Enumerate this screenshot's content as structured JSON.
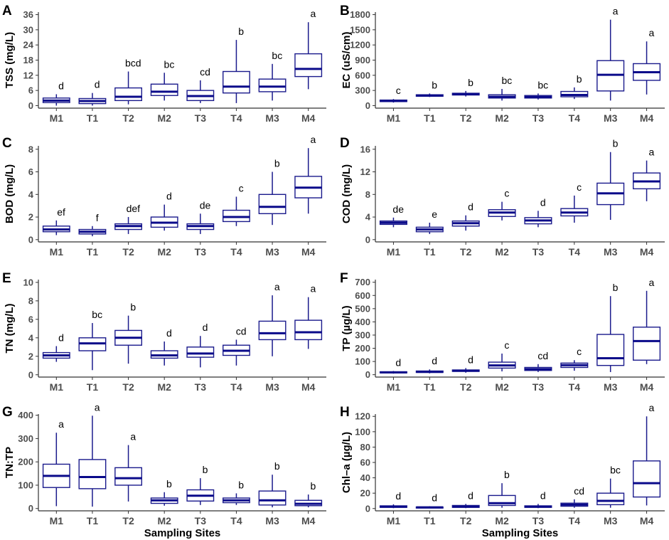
{
  "chart_data": [
    {
      "type": "boxplot",
      "panel": "A",
      "ylabel": "TSS (mg/L)",
      "xlabel": "",
      "categories": [
        "M1",
        "T1",
        "T2",
        "M2",
        "T3",
        "T4",
        "M3",
        "M4"
      ],
      "ylim": [
        -1,
        37
      ],
      "yticks": [
        0,
        6,
        12,
        18,
        24,
        30,
        36
      ],
      "boxes": [
        {
          "min": 0,
          "q1": 1.2,
          "median": 2.0,
          "q3": 3.0,
          "max": 4.5,
          "label": "d"
        },
        {
          "min": 0,
          "q1": 0.8,
          "median": 1.8,
          "q3": 2.8,
          "max": 5.0,
          "label": "d"
        },
        {
          "min": 0.5,
          "q1": 2.0,
          "median": 3.5,
          "q3": 7.0,
          "max": 13.5,
          "label": "bcd"
        },
        {
          "min": 2.0,
          "q1": 4.0,
          "median": 5.5,
          "q3": 8.5,
          "max": 13.0,
          "label": "bc"
        },
        {
          "min": 1.0,
          "q1": 2.0,
          "median": 3.8,
          "q3": 6.0,
          "max": 10.0,
          "label": "cd"
        },
        {
          "min": 1.0,
          "q1": 5.0,
          "median": 7.5,
          "q3": 13.5,
          "max": 26.0,
          "label": "b"
        },
        {
          "min": 2.0,
          "q1": 5.5,
          "median": 7.5,
          "q3": 10.5,
          "max": 16.5,
          "label": "bc"
        },
        {
          "min": 6.5,
          "q1": 11.5,
          "median": 14.5,
          "q3": 20.5,
          "max": 33.0,
          "label": "a"
        }
      ]
    },
    {
      "type": "boxplot",
      "panel": "B",
      "ylabel": "EC (uS/cm)",
      "xlabel": "",
      "categories": [
        "M1",
        "T1",
        "T2",
        "M2",
        "T3",
        "T4",
        "M3",
        "M4"
      ],
      "ylim": [
        -50,
        1850
      ],
      "yticks": [
        0,
        300,
        600,
        900,
        1200,
        1500,
        1800
      ],
      "boxes": [
        {
          "min": 60,
          "q1": 80,
          "median": 90,
          "q3": 110,
          "max": 130,
          "label": "c"
        },
        {
          "min": 170,
          "q1": 185,
          "median": 200,
          "q3": 215,
          "max": 240,
          "label": "b"
        },
        {
          "min": 180,
          "q1": 210,
          "median": 225,
          "q3": 245,
          "max": 290,
          "label": "b"
        },
        {
          "min": 100,
          "q1": 150,
          "median": 175,
          "q3": 215,
          "max": 330,
          "label": "bc"
        },
        {
          "min": 120,
          "q1": 150,
          "median": 170,
          "q3": 200,
          "max": 240,
          "label": "bc"
        },
        {
          "min": 130,
          "q1": 175,
          "median": 210,
          "q3": 280,
          "max": 360,
          "label": "b"
        },
        {
          "min": 100,
          "q1": 290,
          "median": 610,
          "q3": 890,
          "max": 1700,
          "label": "a"
        },
        {
          "min": 220,
          "q1": 500,
          "median": 660,
          "q3": 830,
          "max": 1270,
          "label": "a"
        }
      ]
    },
    {
      "type": "boxplot",
      "panel": "C",
      "ylabel": "BOD (mg/L)",
      "xlabel": "",
      "categories": [
        "M1",
        "T1",
        "T2",
        "M2",
        "T3",
        "T4",
        "M3",
        "M4"
      ],
      "ylim": [
        -0.2,
        8.3
      ],
      "yticks": [
        0,
        2,
        4,
        6,
        8
      ],
      "boxes": [
        {
          "min": 0.4,
          "q1": 0.7,
          "median": 0.9,
          "q3": 1.2,
          "max": 1.7,
          "label": "ef"
        },
        {
          "min": 0.3,
          "q1": 0.5,
          "median": 0.7,
          "q3": 0.9,
          "max": 1.2,
          "label": "f"
        },
        {
          "min": 0.5,
          "q1": 0.9,
          "median": 1.2,
          "q3": 1.4,
          "max": 2.0,
          "label": "def"
        },
        {
          "min": 0.8,
          "q1": 1.1,
          "median": 1.5,
          "q3": 2.0,
          "max": 3.1,
          "label": "d"
        },
        {
          "min": 0.5,
          "q1": 0.9,
          "median": 1.2,
          "q3": 1.4,
          "max": 2.3,
          "label": "de"
        },
        {
          "min": 1.2,
          "q1": 1.6,
          "median": 2.0,
          "q3": 2.6,
          "max": 3.8,
          "label": "c"
        },
        {
          "min": 1.3,
          "q1": 2.3,
          "median": 2.9,
          "q3": 4.0,
          "max": 6.0,
          "label": "b"
        },
        {
          "min": 2.3,
          "q1": 3.7,
          "median": 4.6,
          "q3": 5.6,
          "max": 8.1,
          "label": "a"
        }
      ]
    },
    {
      "type": "boxplot",
      "panel": "D",
      "ylabel": "COD (mg/L)",
      "xlabel": "",
      "categories": [
        "M1",
        "T1",
        "T2",
        "M2",
        "T3",
        "T4",
        "M3",
        "M4"
      ],
      "ylim": [
        -0.4,
        16.6
      ],
      "yticks": [
        0,
        4,
        8,
        12,
        16
      ],
      "boxes": [
        {
          "min": 2.2,
          "q1": 2.7,
          "median": 3.0,
          "q3": 3.3,
          "max": 3.9,
          "label": "de"
        },
        {
          "min": 1.0,
          "q1": 1.4,
          "median": 1.8,
          "q3": 2.2,
          "max": 3.0,
          "label": "e"
        },
        {
          "min": 1.6,
          "q1": 2.4,
          "median": 2.9,
          "q3": 3.3,
          "max": 4.3,
          "label": "d"
        },
        {
          "min": 3.4,
          "q1": 4.1,
          "median": 4.8,
          "q3": 5.3,
          "max": 6.7,
          "label": "c"
        },
        {
          "min": 2.2,
          "q1": 2.8,
          "median": 3.4,
          "q3": 3.9,
          "max": 5.1,
          "label": "d"
        },
        {
          "min": 3.0,
          "q1": 4.2,
          "median": 4.8,
          "q3": 5.5,
          "max": 7.8,
          "label": "c"
        },
        {
          "min": 3.5,
          "q1": 6.2,
          "median": 8.2,
          "q3": 10.0,
          "max": 15.5,
          "label": "b"
        },
        {
          "min": 6.8,
          "q1": 9.0,
          "median": 10.3,
          "q3": 11.8,
          "max": 14.0,
          "label": "a"
        }
      ]
    },
    {
      "type": "boxplot",
      "panel": "E",
      "ylabel": "TN (mg/L)",
      "xlabel": "",
      "categories": [
        "M1",
        "T1",
        "T2",
        "M2",
        "T3",
        "T4",
        "M3",
        "M4"
      ],
      "ylim": [
        -0.25,
        10.3
      ],
      "yticks": [
        0,
        2,
        4,
        6,
        8,
        10
      ],
      "boxes": [
        {
          "min": 1.4,
          "q1": 1.8,
          "median": 2.1,
          "q3": 2.4,
          "max": 3.1,
          "label": "d"
        },
        {
          "min": 0.5,
          "q1": 2.6,
          "median": 3.4,
          "q3": 4.0,
          "max": 5.6,
          "label": "bc"
        },
        {
          "min": 1.2,
          "q1": 3.2,
          "median": 4.0,
          "q3": 4.8,
          "max": 6.4,
          "label": "b"
        },
        {
          "min": 1.0,
          "q1": 1.8,
          "median": 2.1,
          "q3": 2.6,
          "max": 3.6,
          "label": "d"
        },
        {
          "min": 0.8,
          "q1": 1.9,
          "median": 2.3,
          "q3": 3.0,
          "max": 4.2,
          "label": "d"
        },
        {
          "min": 1.0,
          "q1": 2.1,
          "median": 2.6,
          "q3": 3.2,
          "max": 3.8,
          "label": "cd"
        },
        {
          "min": 2.0,
          "q1": 3.8,
          "median": 4.5,
          "q3": 5.8,
          "max": 8.6,
          "label": "a"
        },
        {
          "min": 2.8,
          "q1": 3.8,
          "median": 4.6,
          "q3": 5.9,
          "max": 8.4,
          "label": "a"
        }
      ]
    },
    {
      "type": "boxplot",
      "panel": "F",
      "ylabel": "TP (µg/L)",
      "xlabel": "",
      "categories": [
        "M1",
        "T1",
        "T2",
        "M2",
        "T3",
        "T4",
        "M3",
        "M4"
      ],
      "ylim": [
        -18,
        720
      ],
      "yticks": [
        0,
        100,
        200,
        300,
        400,
        500,
        600,
        700
      ],
      "boxes": [
        {
          "min": 8,
          "q1": 14,
          "median": 18,
          "q3": 22,
          "max": 28,
          "label": "d"
        },
        {
          "min": 10,
          "q1": 17,
          "median": 22,
          "q3": 28,
          "max": 40,
          "label": "d"
        },
        {
          "min": 15,
          "q1": 25,
          "median": 30,
          "q3": 36,
          "max": 50,
          "label": "d"
        },
        {
          "min": 25,
          "q1": 50,
          "median": 70,
          "q3": 95,
          "max": 160,
          "label": "c"
        },
        {
          "min": 20,
          "q1": 32,
          "median": 42,
          "q3": 55,
          "max": 80,
          "label": "cd"
        },
        {
          "min": 30,
          "q1": 55,
          "median": 72,
          "q3": 88,
          "max": 110,
          "label": "c"
        },
        {
          "min": 20,
          "q1": 70,
          "median": 125,
          "q3": 305,
          "max": 595,
          "label": "b"
        },
        {
          "min": 80,
          "q1": 110,
          "median": 255,
          "q3": 360,
          "max": 635,
          "label": "a"
        }
      ]
    },
    {
      "type": "boxplot",
      "panel": "G",
      "ylabel": "TN:TP",
      "xlabel": "Sampling Sites",
      "categories": [
        "M1",
        "T1",
        "T2",
        "M2",
        "T3",
        "T4",
        "M3",
        "M4"
      ],
      "ylim": [
        -10,
        405
      ],
      "yticks": [
        0,
        100,
        200,
        300,
        400
      ],
      "boxes": [
        {
          "min": 10,
          "q1": 90,
          "median": 140,
          "q3": 190,
          "max": 325,
          "label": "a"
        },
        {
          "min": 8,
          "q1": 85,
          "median": 135,
          "q3": 210,
          "max": 398,
          "label": "a"
        },
        {
          "min": 30,
          "q1": 100,
          "median": 130,
          "q3": 175,
          "max": 272,
          "label": "a"
        },
        {
          "min": 12,
          "q1": 22,
          "median": 35,
          "q3": 45,
          "max": 70,
          "label": "b"
        },
        {
          "min": 15,
          "q1": 32,
          "median": 55,
          "q3": 80,
          "max": 130,
          "label": "b"
        },
        {
          "min": 15,
          "q1": 25,
          "median": 35,
          "q3": 45,
          "max": 65,
          "label": "b"
        },
        {
          "min": 5,
          "q1": 15,
          "median": 35,
          "q3": 75,
          "max": 145,
          "label": "b"
        },
        {
          "min": 5,
          "q1": 12,
          "median": 20,
          "q3": 35,
          "max": 60,
          "label": "b"
        }
      ]
    },
    {
      "type": "boxplot",
      "panel": "H",
      "ylabel": "Chl–a (µg/L)",
      "xlabel": "Sampling Sites",
      "categories": [
        "M1",
        "T1",
        "T2",
        "M2",
        "T3",
        "T4",
        "M3",
        "M4"
      ],
      "ylim": [
        -3,
        123
      ],
      "yticks": [
        0,
        20,
        40,
        60,
        80,
        100,
        120
      ],
      "boxes": [
        {
          "min": 0.5,
          "q1": 1.5,
          "median": 2.5,
          "q3": 3.5,
          "max": 5.5,
          "label": "d"
        },
        {
          "min": 0.5,
          "q1": 1.0,
          "median": 1.5,
          "q3": 2.0,
          "max": 3.0,
          "label": "d"
        },
        {
          "min": 0.5,
          "q1": 1.5,
          "median": 2.5,
          "q3": 4.0,
          "max": 6.0,
          "label": "d"
        },
        {
          "min": 1.0,
          "q1": 4.0,
          "median": 7.0,
          "q3": 17.0,
          "max": 33.0,
          "label": "b"
        },
        {
          "min": 0.5,
          "q1": 1.5,
          "median": 2.5,
          "q3": 3.5,
          "max": 6.0,
          "label": "d"
        },
        {
          "min": 1.0,
          "q1": 3.0,
          "median": 5.0,
          "q3": 7.0,
          "max": 12.0,
          "label": "cd"
        },
        {
          "min": 1.0,
          "q1": 5.0,
          "median": 10.0,
          "q3": 20.0,
          "max": 39.0,
          "label": "bc"
        },
        {
          "min": 4.0,
          "q1": 15.0,
          "median": 33.0,
          "q3": 62.0,
          "max": 120.0,
          "label": "a"
        }
      ]
    }
  ],
  "style": {
    "box_color": "#1a1a8c",
    "median_color": "#0a0a8a",
    "axis_color": "#333333",
    "tick_color": "#4d4d4d"
  }
}
